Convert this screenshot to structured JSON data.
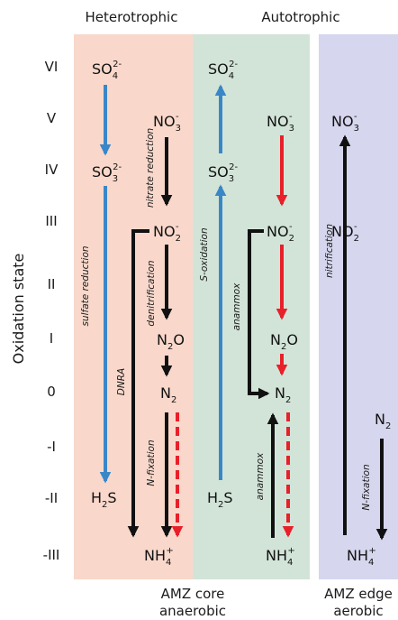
{
  "headers": {
    "heterotrophic": "Heterotrophic",
    "autotrophic": "Autotrophic"
  },
  "y_axis_label": "Oxidation state",
  "levels": [
    "VI",
    "V",
    "IV",
    "III",
    "II",
    "I",
    "0",
    "-I",
    "-II",
    "-III"
  ],
  "species": {
    "so4_hetero": {
      "base": "SO",
      "sub": "4",
      "sup": "2-"
    },
    "so3_hetero": {
      "base": "SO",
      "sub": "3",
      "sup": "2-"
    },
    "h2s_hetero": {
      "base": "H",
      "sub": "2",
      "tail": "S"
    },
    "no3_hetero": {
      "base": "NO",
      "sub": "3",
      "sup": "-"
    },
    "no2_hetero": {
      "base": "NO",
      "sub": "2",
      "sup": "-"
    },
    "n2o_hetero": {
      "base": "N",
      "sub": "2",
      "tail": "O"
    },
    "n2_hetero": {
      "base": "N",
      "sub": "2"
    },
    "nh4_hetero": {
      "base": "NH",
      "sub": "4",
      "sup": "+"
    },
    "so4_auto": {
      "base": "SO",
      "sub": "4",
      "sup": "2-"
    },
    "so3_auto": {
      "base": "SO",
      "sub": "3",
      "sup": "2-"
    },
    "h2s_auto": {
      "base": "H",
      "sub": "2",
      "tail": "S"
    },
    "no3_auto": {
      "base": "NO",
      "sub": "3",
      "sup": "-"
    },
    "no2_auto": {
      "base": "NO",
      "sub": "2",
      "sup": "-"
    },
    "n2o_auto": {
      "base": "N",
      "sub": "2",
      "tail": "O"
    },
    "n2_auto": {
      "base": "N",
      "sub": "2"
    },
    "nh4_auto": {
      "base": "NH",
      "sub": "4",
      "sup": "+"
    },
    "no3_edge": {
      "base": "NO",
      "sub": "3",
      "sup": "-"
    },
    "no2_edge": {
      "base": "NO",
      "sub": "2",
      "sup": "-"
    },
    "n2_edge": {
      "base": "N",
      "sub": "2"
    },
    "nh4_edge": {
      "base": "NH",
      "sub": "4",
      "sup": "+"
    }
  },
  "reactions": {
    "sulfate_reduction": "sulfate reduction",
    "nitrate_reduction": "nitrate reduction",
    "denitrification": "denitrification",
    "dnra": "DNRA",
    "n_fixation": "N-fixation",
    "s_oxidation": "S-oxidation",
    "anammox_upper": "anammox",
    "anammox_lower": "anammox",
    "nitrification": "nitrification",
    "n_fixation_edge": "N-fixation"
  },
  "footer": {
    "amz_core": "AMZ core",
    "anaerobic": "anaerobic",
    "amz_edge": "AMZ edge",
    "aerobic": "aerobic"
  },
  "colors": {
    "heterotrophic_bg": "#f9d8cb",
    "autotrophic_bg": "#d2e4d8",
    "edge_bg": "#d6d6ee",
    "sulfur_arrow": "#3a87c8",
    "red_arrow": "#e8202a",
    "black_arrow": "#111111"
  }
}
